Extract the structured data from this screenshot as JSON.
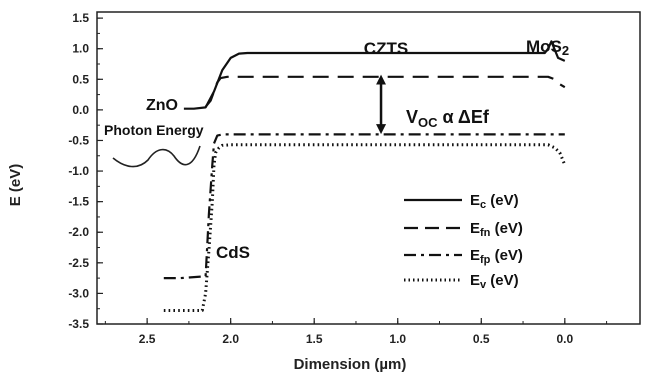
{
  "chart_data": {
    "type": "line",
    "title": "",
    "xlabel": "Dimension (µm)",
    "ylabel": "E (eV)",
    "x_reversed": true,
    "xlim": [
      2.8,
      -0.45
    ],
    "ylim": [
      -3.5,
      1.6
    ],
    "x_ticks": [
      2.5,
      2.0,
      1.5,
      1.0,
      0.5,
      0.0
    ],
    "x_tick_labels": [
      "2.5",
      "2.0",
      "1.5",
      "1.0",
      "0.5",
      "0.0"
    ],
    "y_ticks": [
      1.5,
      1.0,
      0.5,
      0.0,
      -0.5,
      -1.0,
      -1.5,
      -2.0,
      -2.5,
      -3.0,
      -3.5
    ],
    "y_tick_labels": [
      "1.5",
      "1.0",
      "0.5",
      "0.0",
      "-0.5",
      "-1.0",
      "-1.5",
      "-2.0",
      "-2.5",
      "-3.0",
      "-3.5"
    ],
    "grid": false,
    "legend_position": "bottom-right",
    "series": [
      {
        "name": "Ec (eV)",
        "style": "solid",
        "x": [
          2.28,
          2.22,
          2.15,
          2.1,
          2.05,
          2.0,
          1.95,
          1.9,
          1.5,
          1.0,
          0.5,
          0.2,
          0.12,
          0.1,
          0.08,
          0.06,
          0.04,
          0.0
        ],
        "y": [
          0.02,
          0.02,
          0.04,
          0.3,
          0.65,
          0.85,
          0.92,
          0.93,
          0.93,
          0.93,
          0.93,
          0.93,
          0.93,
          1.0,
          1.12,
          0.98,
          0.85,
          0.8
        ]
      },
      {
        "name": "Efn (eV)",
        "style": "dashed",
        "x": [
          2.15,
          2.12,
          2.1,
          2.08,
          2.06,
          2.02,
          1.95,
          1.5,
          1.0,
          0.5,
          0.1,
          0.06,
          0.03,
          0.0
        ],
        "y": [
          0.05,
          0.15,
          0.3,
          0.45,
          0.52,
          0.54,
          0.54,
          0.54,
          0.54,
          0.54,
          0.54,
          0.5,
          0.42,
          0.37
        ]
      },
      {
        "name": "Efp (eV)",
        "style": "dash-dot",
        "x": [
          2.4,
          2.3,
          2.15,
          2.14,
          2.13,
          2.12,
          2.11,
          2.1,
          2.08,
          2.05,
          2.0,
          1.5,
          1.0,
          0.5,
          0.1,
          0.05,
          0.0
        ],
        "y": [
          -2.75,
          -2.75,
          -2.72,
          -2.2,
          -1.7,
          -1.3,
          -0.9,
          -0.55,
          -0.42,
          -0.4,
          -0.4,
          -0.4,
          -0.4,
          -0.4,
          -0.4,
          -0.4,
          -0.4
        ]
      },
      {
        "name": "Ev (eV)",
        "style": "dotted",
        "x": [
          2.4,
          2.3,
          2.17,
          2.15,
          2.13,
          2.11,
          2.1,
          2.09,
          2.07,
          2.05,
          2.0,
          1.9,
          1.5,
          1.0,
          0.5,
          0.1,
          0.06,
          0.03,
          0.0
        ],
        "y": [
          -3.28,
          -3.28,
          -3.28,
          -3.0,
          -2.3,
          -1.5,
          -0.9,
          -0.7,
          -0.62,
          -0.58,
          -0.57,
          -0.57,
          -0.57,
          -0.57,
          -0.57,
          -0.57,
          -0.62,
          -0.7,
          -0.9
        ]
      }
    ],
    "annotations": [
      {
        "text": "CZTS",
        "x": 1.0,
        "y": 1.2
      },
      {
        "text": "MoS2",
        "x": 0.14,
        "y": 1.22
      },
      {
        "text": "ZnO",
        "x": 2.26,
        "y": 0.2
      },
      {
        "text": "Photon Energy",
        "x": 2.47,
        "y": -0.22
      },
      {
        "text": "CdS",
        "x": 2.0,
        "y": -2.5
      },
      {
        "text": "VOC α ΔEf",
        "x": 0.76,
        "y": -0.03
      }
    ],
    "voc_arrow": {
      "x": 1.1,
      "y_top": 0.56,
      "y_bottom": -0.38
    }
  },
  "legend": {
    "entries": [
      {
        "main": "E",
        "sub": "c",
        "rest": " (eV)"
      },
      {
        "main": "E",
        "sub": "fn",
        "rest": " (eV)"
      },
      {
        "main": "E",
        "sub": "fp",
        "rest": " (eV)"
      },
      {
        "main": "E",
        "sub": "v",
        "rest": " (eV)"
      }
    ]
  },
  "annotation_parts": {
    "czts": "CZTS",
    "mos2_main": "MoS",
    "mos2_sub": "2",
    "zno": "ZnO",
    "photon": "Photon Energy",
    "cds": "CdS",
    "voc_main": "V",
    "voc_sub": "OC",
    "voc_rest": " α ΔEf"
  }
}
